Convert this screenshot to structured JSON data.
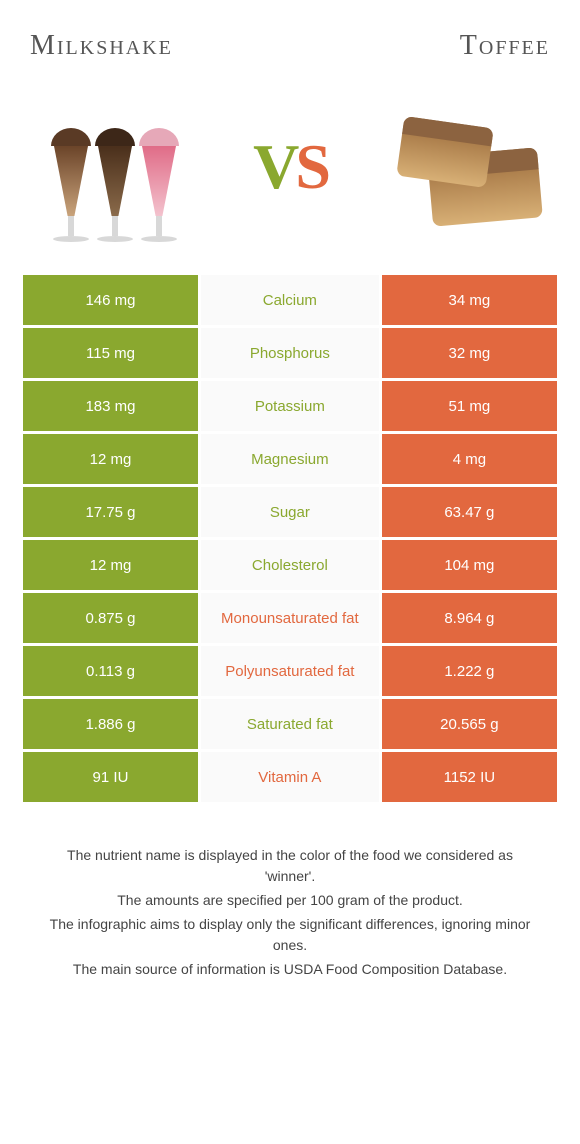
{
  "header": {
    "left_title": "Milkshake",
    "right_title": "Toffee",
    "vs_v": "V",
    "vs_s": "S"
  },
  "colors": {
    "green": "#8aa82f",
    "orange": "#e2683f",
    "row_bg": "#fafafa",
    "page_bg": "#ffffff"
  },
  "rows": [
    {
      "left": "146 mg",
      "label": "Calcium",
      "right": "34 mg",
      "winner": "left"
    },
    {
      "left": "115 mg",
      "label": "Phosphorus",
      "right": "32 mg",
      "winner": "left"
    },
    {
      "left": "183 mg",
      "label": "Potassium",
      "right": "51 mg",
      "winner": "left"
    },
    {
      "left": "12 mg",
      "label": "Magnesium",
      "right": "4 mg",
      "winner": "left"
    },
    {
      "left": "17.75 g",
      "label": "Sugar",
      "right": "63.47 g",
      "winner": "left"
    },
    {
      "left": "12 mg",
      "label": "Cholesterol",
      "right": "104 mg",
      "winner": "left"
    },
    {
      "left": "0.875 g",
      "label": "Monounsaturated fat",
      "right": "8.964 g",
      "winner": "right"
    },
    {
      "left": "0.113 g",
      "label": "Polyunsaturated fat",
      "right": "1.222 g",
      "winner": "right"
    },
    {
      "left": "1.886 g",
      "label": "Saturated fat",
      "right": "20.565 g",
      "winner": "left"
    },
    {
      "left": "91 IU",
      "label": "Vitamin A",
      "right": "1152 IU",
      "winner": "right"
    }
  ],
  "footnotes": [
    "The nutrient name is displayed in the color of the food we considered as 'winner'.",
    "The amounts are specified per 100 gram of the product.",
    "The infographic aims to display only the significant differences, ignoring minor ones.",
    "The main source of information is USDA Food Composition Database."
  ]
}
